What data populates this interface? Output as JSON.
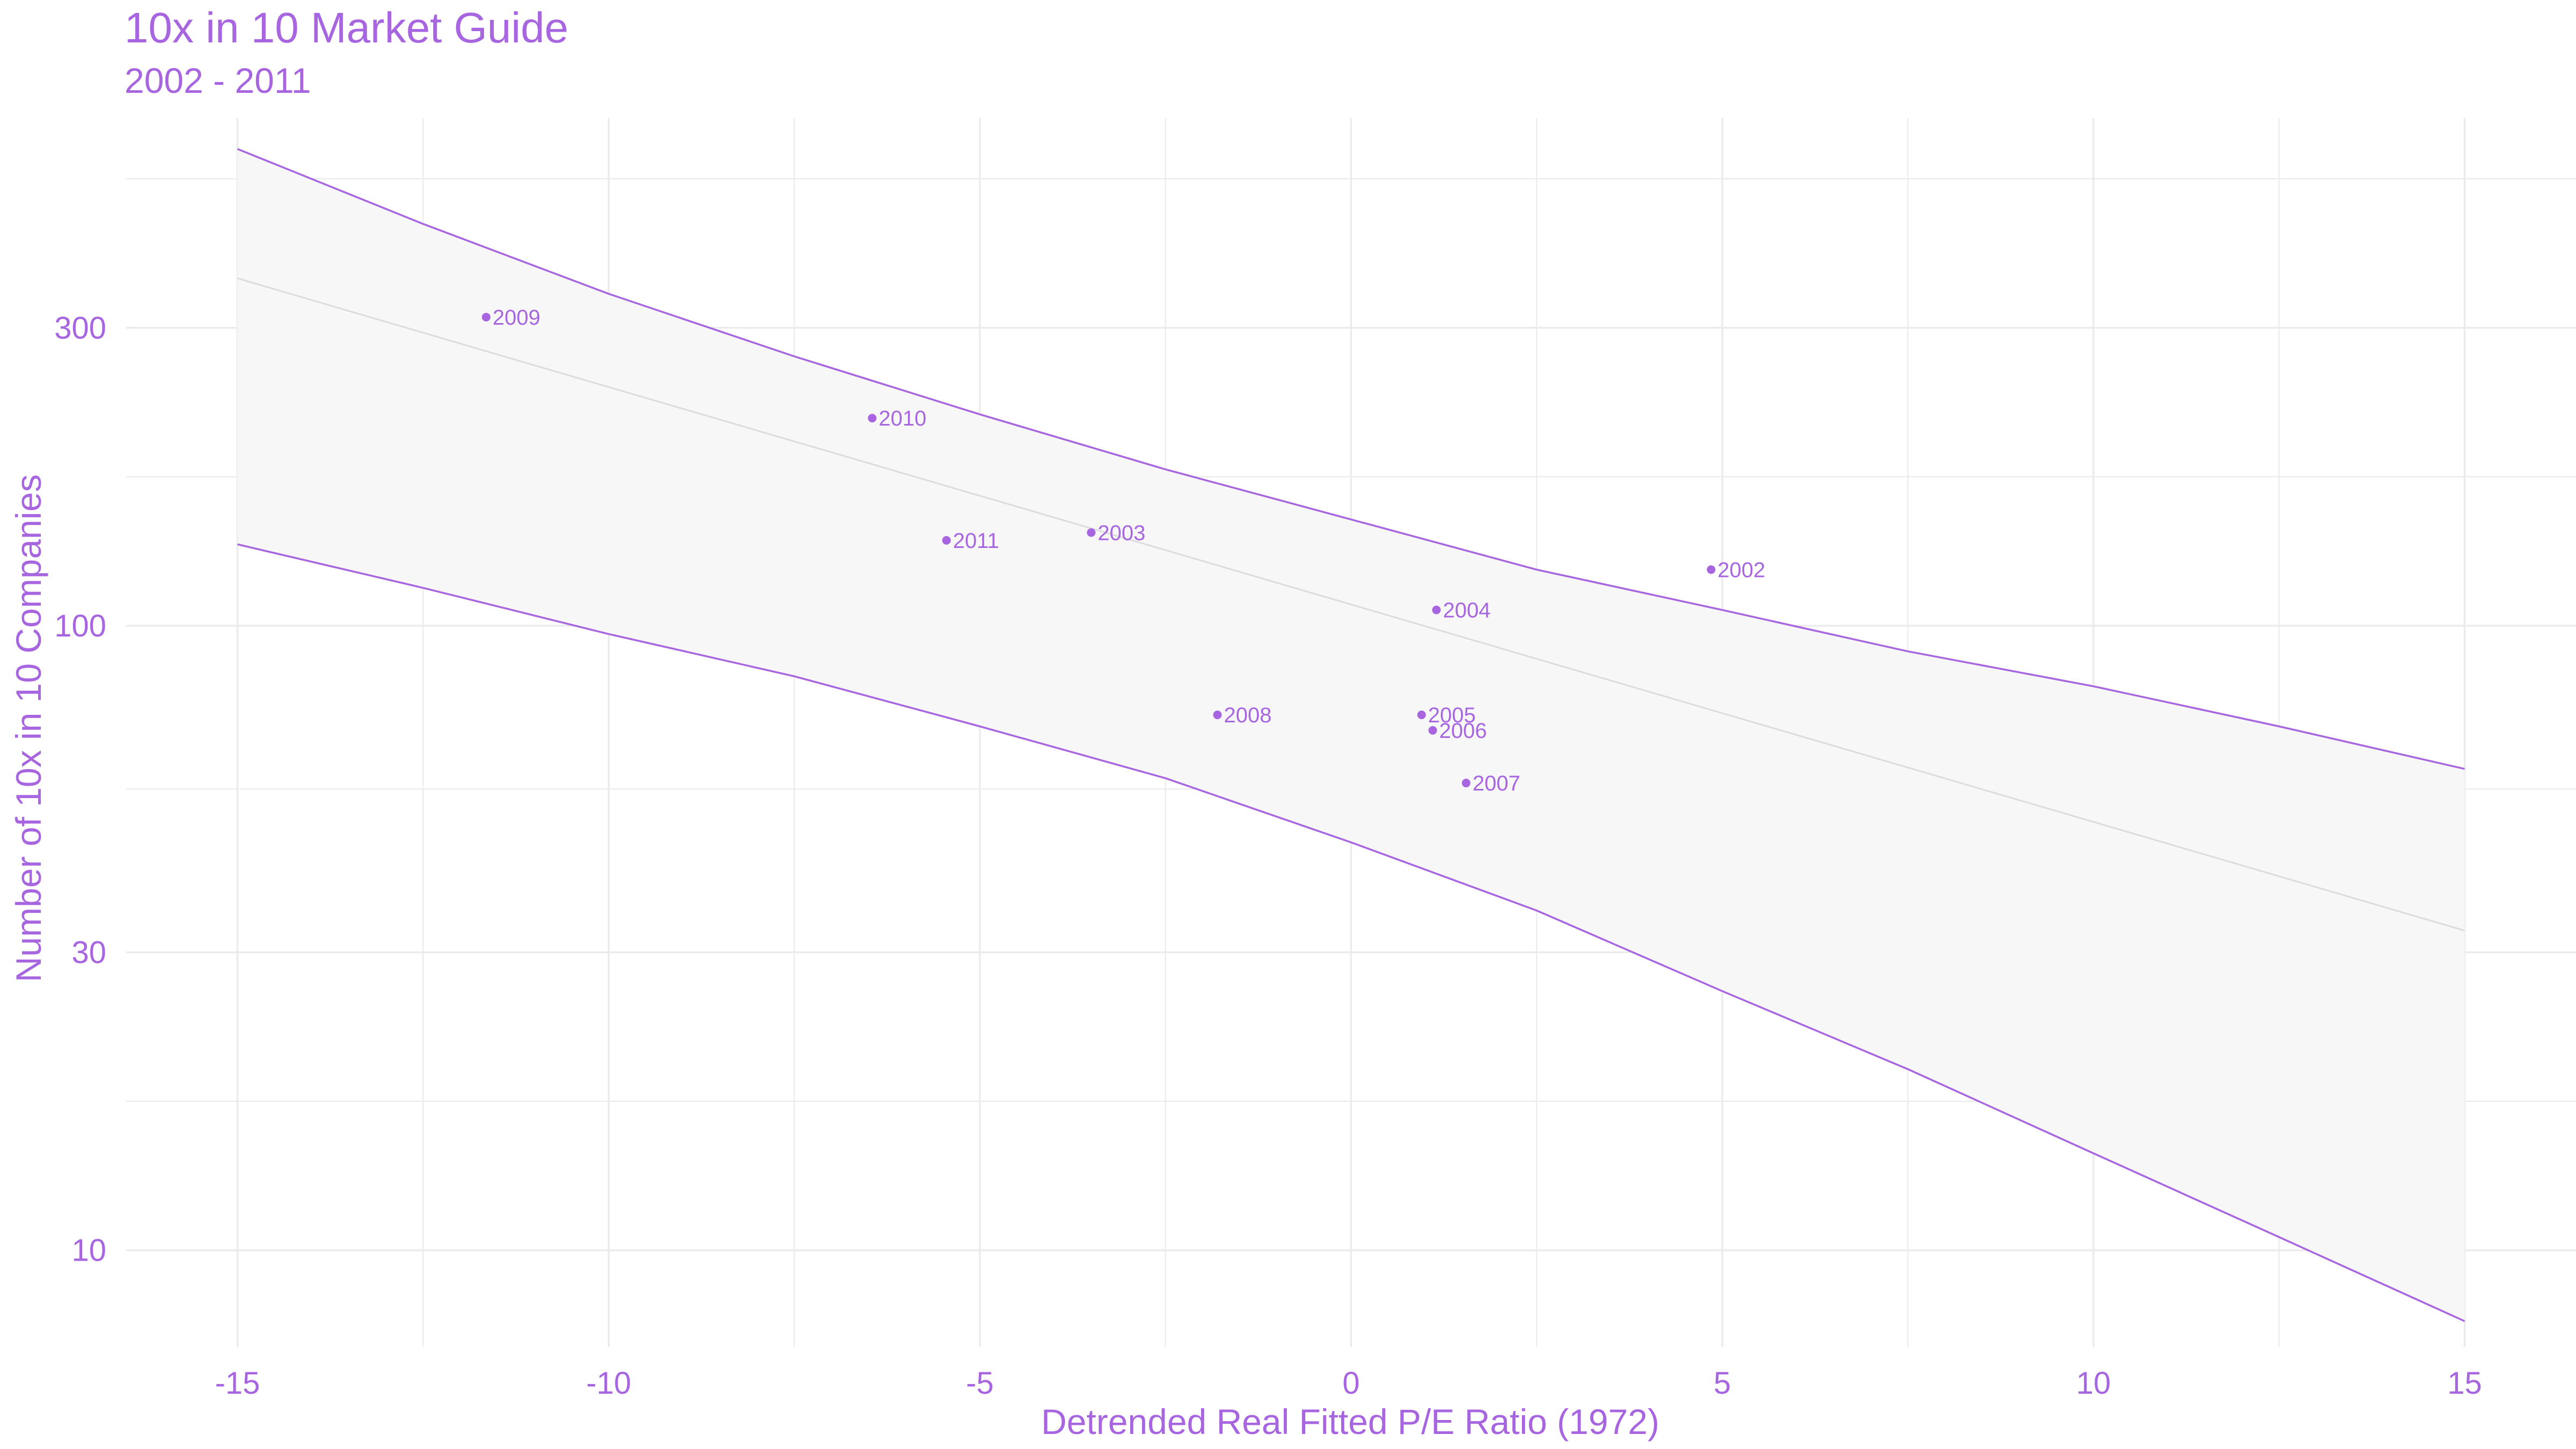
{
  "chart_data": {
    "type": "scatter",
    "title": "10x in 10 Market Guide",
    "subtitle": "2002 - 2011",
    "xlabel": "Detrended Real Fitted P/E Ratio (1972)",
    "ylabel": "Number of 10x in 10 Companies",
    "xlim": [
      -16.5,
      16.5
    ],
    "ylim": [
      7,
      650
    ],
    "y_scale": "log",
    "grid": true,
    "x_ticks": [
      -15,
      -10,
      -5,
      0,
      5,
      10,
      15
    ],
    "x_tick_labels": [
      "-15",
      "-10",
      "-5",
      "0",
      "5",
      "10",
      "15"
    ],
    "y_ticks": [
      10,
      30,
      100,
      300
    ],
    "y_tick_labels": [
      "10",
      "30",
      "100",
      "300"
    ],
    "points": [
      {
        "label": "2009",
        "x": -11.65,
        "y": 312
      },
      {
        "label": "2010",
        "x": -6.45,
        "y": 215
      },
      {
        "label": "2011",
        "x": -5.45,
        "y": 137
      },
      {
        "label": "2003",
        "x": -3.5,
        "y": 141
      },
      {
        "label": "2004",
        "x": 1.15,
        "y": 106
      },
      {
        "label": "2002",
        "x": 4.85,
        "y": 123
      },
      {
        "label": "2008",
        "x": -1.8,
        "y": 72
      },
      {
        "label": "2005",
        "x": 0.95,
        "y": 72
      },
      {
        "label": "2006",
        "x": 1.1,
        "y": 68
      },
      {
        "label": "2007",
        "x": 1.55,
        "y": 56
      }
    ],
    "fit_line": {
      "x": [
        -15,
        15
      ],
      "y": [
        360,
        32.5
      ]
    },
    "confidence_band": {
      "x": [
        -15,
        -12.5,
        -10,
        -7.5,
        -5,
        -2.5,
        0,
        2.5,
        5,
        7.5,
        10,
        12.5,
        15
      ],
      "upper": [
        580,
        440,
        340,
        270,
        218,
        178,
        148,
        123,
        106,
        91,
        80,
        69,
        59
      ],
      "lower": [
        135,
        115,
        97,
        83,
        69,
        57,
        45,
        35,
        26,
        19.5,
        14.3,
        10.5,
        7.7
      ]
    },
    "colors": {
      "accent": "#a766e0",
      "band_fill": "#f7f7f7",
      "fit_line": "#dcdcdc",
      "grid": "#ebebeb"
    }
  }
}
